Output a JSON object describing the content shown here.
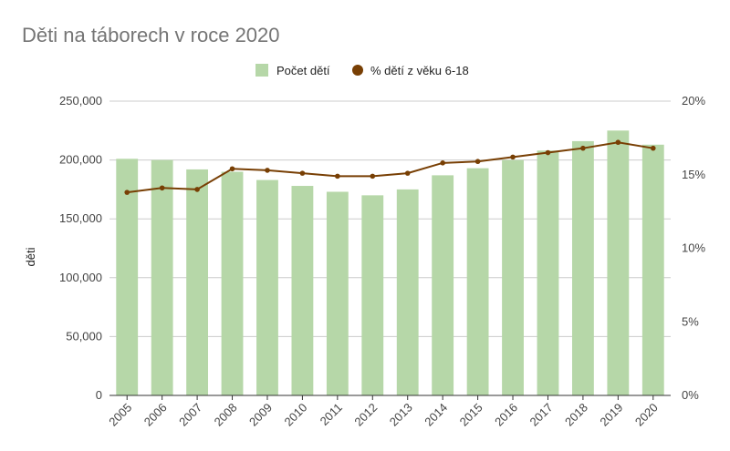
{
  "chart_data": {
    "type": "bar",
    "title": "Děti na táborech v roce 2020",
    "ylabel": "děti",
    "categories": [
      "2005",
      "2006",
      "2007",
      "2008",
      "2009",
      "2010",
      "2011",
      "2012",
      "2013",
      "2014",
      "2015",
      "2016",
      "2017",
      "2018",
      "2019",
      "2020"
    ],
    "series": [
      {
        "name": "Počet dětí",
        "type": "bar",
        "axis": "left",
        "color": "#b6d7a8",
        "values": [
          201000,
          200000,
          192000,
          190000,
          183000,
          178000,
          173000,
          170000,
          175000,
          187000,
          193000,
          200000,
          208000,
          216000,
          225000,
          213000
        ]
      },
      {
        "name": "% dětí z věku 6-18",
        "type": "line",
        "axis": "right",
        "color": "#783f04",
        "values": [
          13.8,
          14.1,
          14.0,
          15.4,
          15.3,
          15.1,
          14.9,
          14.9,
          15.1,
          15.8,
          15.9,
          16.2,
          16.5,
          16.8,
          17.2,
          16.8
        ]
      }
    ],
    "ylim": [
      0,
      250000
    ],
    "y2lim": [
      0,
      20
    ],
    "y_ticks": [
      "0",
      "50,000",
      "100,000",
      "150,000",
      "200,000",
      "250,000"
    ],
    "y2_ticks": [
      "0%",
      "5%",
      "10%",
      "15%",
      "20%"
    ],
    "legend_position": "top",
    "grid": true
  }
}
